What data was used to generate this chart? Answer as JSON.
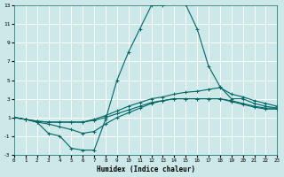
{
  "xlabel": "Humidex (Indice chaleur)",
  "bg_color": "#cce8e8",
  "grid_color": "#ffffff",
  "line_color": "#006666",
  "xlim": [
    0,
    23
  ],
  "ylim": [
    -3,
    13
  ],
  "xticks": [
    0,
    1,
    2,
    3,
    4,
    5,
    6,
    7,
    8,
    9,
    10,
    11,
    12,
    13,
    14,
    15,
    16,
    17,
    18,
    19,
    20,
    21,
    22,
    23
  ],
  "yticks": [
    -3,
    -1,
    1,
    3,
    5,
    7,
    9,
    11,
    13
  ],
  "curve_main_x": [
    0,
    1,
    2,
    3,
    4,
    5,
    6,
    7,
    8,
    9,
    10,
    11,
    12,
    13,
    14,
    15,
    16,
    17,
    18,
    19,
    20,
    21,
    22,
    23
  ],
  "curve_main_y": [
    1.0,
    0.8,
    0.5,
    -0.7,
    -1.0,
    -2.3,
    -2.5,
    -2.5,
    0.8,
    5.0,
    8.0,
    10.5,
    13.0,
    13.0,
    13.2,
    13.1,
    10.5,
    6.5,
    4.3,
    3.0,
    3.0,
    2.5,
    2.2,
    2.0
  ],
  "curve_a_x": [
    0,
    1,
    2,
    3,
    4,
    5,
    6,
    7,
    8,
    9,
    10,
    11,
    12,
    13,
    14,
    15,
    16,
    17,
    18,
    19,
    20,
    21,
    22,
    23
  ],
  "curve_a_y": [
    1.0,
    0.8,
    0.5,
    0.3,
    0.0,
    -0.3,
    -0.7,
    -0.5,
    0.3,
    1.0,
    1.5,
    2.0,
    2.5,
    2.8,
    3.0,
    3.0,
    3.0,
    3.0,
    3.0,
    2.8,
    2.5,
    2.2,
    2.0,
    2.0
  ],
  "curve_b_x": [
    0,
    1,
    2,
    3,
    4,
    5,
    6,
    7,
    8,
    9,
    10,
    11,
    12,
    13,
    14,
    15,
    16,
    17,
    18,
    19,
    20,
    21,
    22,
    23
  ],
  "curve_b_y": [
    1.0,
    0.8,
    0.6,
    0.5,
    0.5,
    0.5,
    0.5,
    0.8,
    1.2,
    1.7,
    2.2,
    2.6,
    3.0,
    3.2,
    3.5,
    3.7,
    3.8,
    4.0,
    4.2,
    3.5,
    3.2,
    2.8,
    2.5,
    2.2
  ],
  "curve_c_x": [
    0,
    1,
    2,
    3,
    4,
    5,
    6,
    7,
    8,
    9,
    10,
    11,
    12,
    13,
    14,
    15,
    16,
    17,
    18,
    19,
    20,
    21,
    22,
    23
  ],
  "curve_c_y": [
    1.0,
    0.8,
    0.6,
    0.5,
    0.5,
    0.5,
    0.5,
    0.7,
    1.0,
    1.4,
    1.8,
    2.2,
    2.6,
    2.8,
    3.0,
    3.0,
    3.0,
    3.0,
    3.0,
    2.7,
    2.4,
    2.1,
    1.9,
    1.9
  ]
}
